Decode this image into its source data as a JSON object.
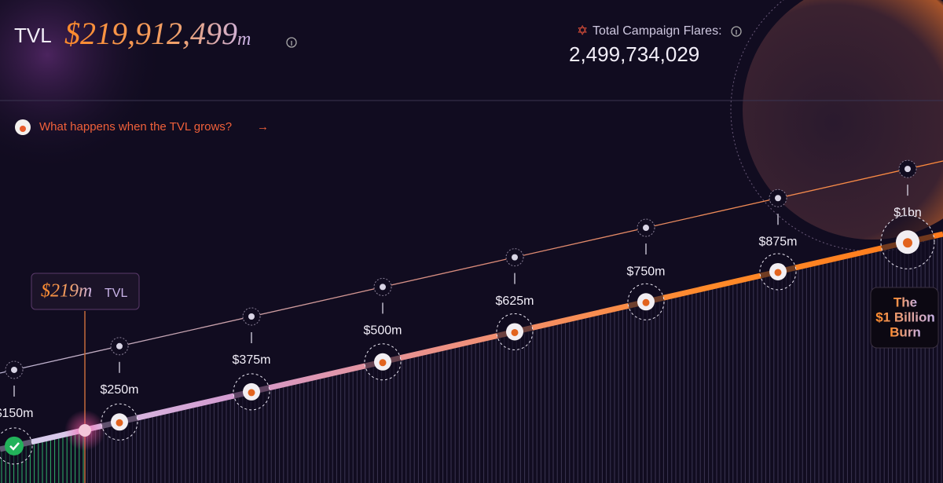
{
  "header": {
    "tvl_label": "TVL",
    "tvl_value": "$219,912,499",
    "tvl_unit": "m",
    "flares_label": "Total Campaign Flares:",
    "flares_value": "2,499,734,029"
  },
  "prompt": "What happens when the TVL grows?",
  "current": {
    "value": "$219m",
    "label": "TVL"
  },
  "milestones": [
    "$150m",
    "$250m",
    "$375m",
    "$500m",
    "$625m",
    "$750m",
    "$875m",
    "$1bn"
  ],
  "goal": {
    "lines": [
      "The",
      "$1 Billion",
      "Burn"
    ]
  }
}
